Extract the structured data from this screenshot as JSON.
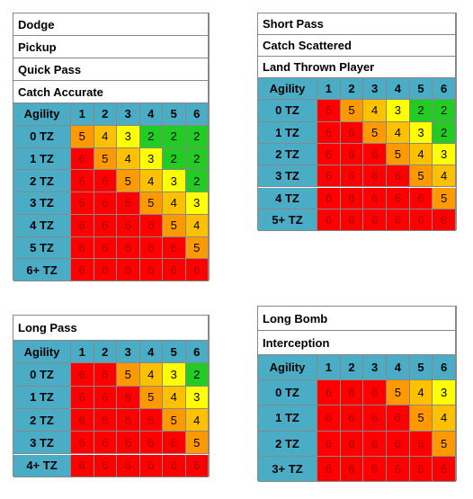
{
  "tables": [
    {
      "titles": [
        "Dodge",
        "Pickup",
        "Quick Pass",
        "Catch Accurate"
      ],
      "header": [
        "Agility",
        "1",
        "2",
        "3",
        "4",
        "5",
        "6"
      ],
      "rows": [
        {
          "label": "0 TZ",
          "values": [
            5,
            4,
            3,
            2,
            2,
            2
          ]
        },
        {
          "label": "1 TZ",
          "values": [
            6,
            5,
            4,
            3,
            2,
            2
          ]
        },
        {
          "label": "2 TZ",
          "values": [
            6,
            6,
            5,
            4,
            3,
            2
          ]
        },
        {
          "label": "3 TZ",
          "values": [
            6,
            6,
            6,
            5,
            4,
            3
          ]
        },
        {
          "label": "4 TZ",
          "values": [
            6,
            6,
            6,
            6,
            5,
            4
          ]
        },
        {
          "label": "5 TZ",
          "values": [
            6,
            6,
            6,
            6,
            6,
            5
          ]
        },
        {
          "label": "6+ TZ",
          "values": [
            6,
            6,
            6,
            6,
            6,
            6
          ]
        }
      ]
    },
    {
      "titles": [
        "Short Pass",
        "Catch Scattered",
        "Land Thrown Player"
      ],
      "header": [
        "Agility",
        "1",
        "2",
        "3",
        "4",
        "5",
        "6"
      ],
      "rows": [
        {
          "label": "0 TZ",
          "values": [
            6,
            5,
            4,
            3,
            2,
            2
          ]
        },
        {
          "label": "1 TZ",
          "values": [
            6,
            6,
            5,
            4,
            3,
            2
          ]
        },
        {
          "label": "2 TZ",
          "values": [
            6,
            6,
            6,
            5,
            4,
            3
          ]
        },
        {
          "label": "3 TZ",
          "values": [
            6,
            6,
            6,
            6,
            5,
            4
          ]
        },
        {
          "label": "4 TZ",
          "values": [
            6,
            6,
            6,
            6,
            6,
            5
          ]
        },
        {
          "label": "5+ TZ",
          "values": [
            6,
            6,
            6,
            6,
            6,
            6
          ]
        }
      ]
    },
    {
      "titles": [
        "Long Pass"
      ],
      "header": [
        "Agility",
        "1",
        "2",
        "3",
        "4",
        "5",
        "6"
      ],
      "rows": [
        {
          "label": "0 TZ",
          "values": [
            6,
            6,
            5,
            4,
            3,
            2
          ]
        },
        {
          "label": "1 TZ",
          "values": [
            6,
            6,
            6,
            5,
            4,
            3
          ]
        },
        {
          "label": "2 TZ",
          "values": [
            6,
            6,
            6,
            6,
            5,
            4
          ]
        },
        {
          "label": "3 TZ",
          "values": [
            6,
            6,
            6,
            6,
            6,
            5
          ]
        },
        {
          "label": "4+ TZ",
          "values": [
            6,
            6,
            6,
            6,
            6,
            6
          ]
        }
      ]
    },
    {
      "titles": [
        "Long Bomb",
        "Interception"
      ],
      "header": [
        "Agility",
        "1",
        "2",
        "3",
        "4",
        "5",
        "6"
      ],
      "rows": [
        {
          "label": "0 TZ",
          "values": [
            6,
            6,
            6,
            5,
            4,
            3
          ]
        },
        {
          "label": "1 TZ",
          "values": [
            6,
            6,
            6,
            6,
            5,
            4
          ]
        },
        {
          "label": "2 TZ",
          "values": [
            6,
            6,
            6,
            6,
            6,
            5
          ]
        },
        {
          "label": "3+ TZ",
          "values": [
            6,
            6,
            6,
            6,
            6,
            6
          ]
        }
      ]
    }
  ]
}
